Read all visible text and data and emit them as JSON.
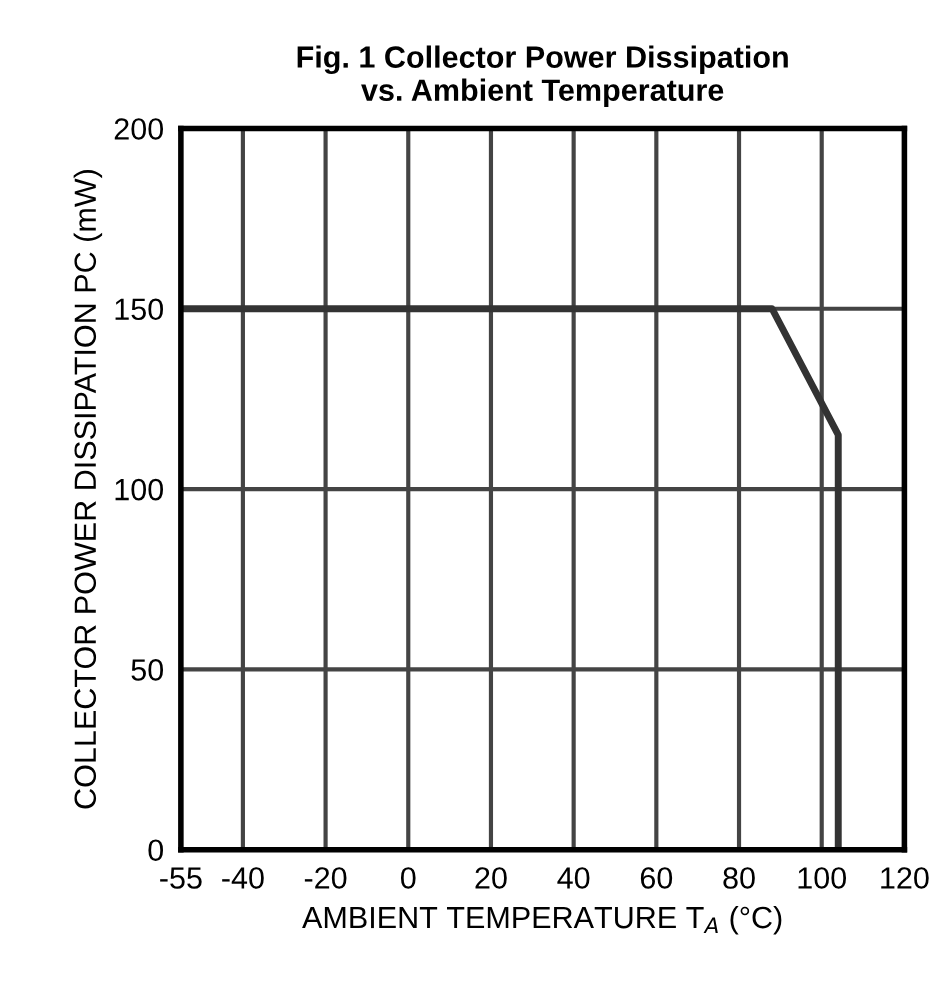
{
  "chart_data": {
    "type": "line",
    "title": "Fig. 1 Collector Power Dissipation\nvs. Ambient Temperature",
    "xlabel": "AMBIENT TEMPERATURE T$_{A}$ (°C)",
    "ylabel": "COLLECTOR POWER DISSIPATION PC (mW)",
    "x": [
      -55,
      88,
      104,
      104
    ],
    "series": [
      {
        "color": "#333333",
        "values": [
          150,
          150,
          115,
          0
        ]
      }
    ],
    "xlim": [
      -55,
      120
    ],
    "xticks": [
      -55,
      -40,
      -20,
      0,
      20,
      40,
      60,
      80,
      100,
      120
    ],
    "ylim": [
      0,
      200
    ],
    "yticks": [
      0,
      50,
      100,
      150,
      200
    ],
    "grid": true,
    "legend": false,
    "marker": "none",
    "line_style": "solid"
  }
}
